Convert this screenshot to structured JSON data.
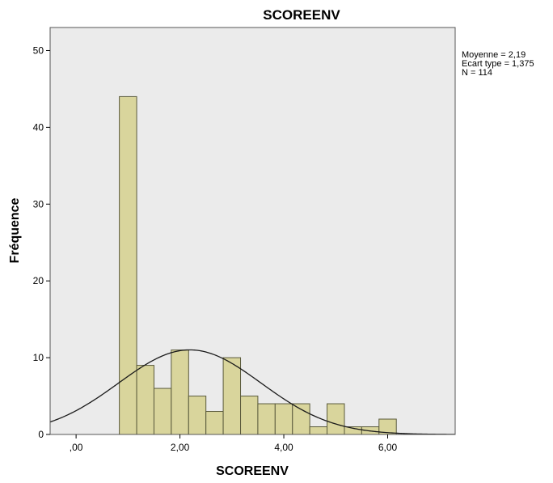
{
  "chart_data": {
    "type": "bar",
    "title": "SCOREENV",
    "xlabel": "SCOREENV",
    "ylabel": "Fréquence",
    "xlim": [
      -0.5,
      7.3
    ],
    "ylim": [
      0,
      53
    ],
    "x_ticks": [
      0,
      2,
      4,
      6
    ],
    "x_tick_labels": [
      ",00",
      "2,00",
      "4,00",
      "6,00"
    ],
    "y_ticks": [
      0,
      10,
      20,
      30,
      40,
      50
    ],
    "y_tick_labels": [
      "0",
      "10",
      "20",
      "30",
      "40",
      "50"
    ],
    "grid": false,
    "bin_width": 0.333,
    "bins": [
      {
        "x0": 0.833,
        "x1": 1.167,
        "count": 44
      },
      {
        "x0": 1.167,
        "x1": 1.5,
        "count": 9
      },
      {
        "x0": 1.5,
        "x1": 1.833,
        "count": 6
      },
      {
        "x0": 1.833,
        "x1": 2.167,
        "count": 11
      },
      {
        "x0": 2.167,
        "x1": 2.5,
        "count": 5
      },
      {
        "x0": 2.5,
        "x1": 2.833,
        "count": 3
      },
      {
        "x0": 2.833,
        "x1": 3.167,
        "count": 10
      },
      {
        "x0": 3.167,
        "x1": 3.5,
        "count": 5
      },
      {
        "x0": 3.5,
        "x1": 3.833,
        "count": 4
      },
      {
        "x0": 3.833,
        "x1": 4.167,
        "count": 4
      },
      {
        "x0": 4.167,
        "x1": 4.5,
        "count": 4
      },
      {
        "x0": 4.5,
        "x1": 4.833,
        "count": 1
      },
      {
        "x0": 4.833,
        "x1": 5.167,
        "count": 4
      },
      {
        "x0": 5.167,
        "x1": 5.5,
        "count": 1
      },
      {
        "x0": 5.5,
        "x1": 5.833,
        "count": 1
      },
      {
        "x0": 5.833,
        "x1": 6.167,
        "count": 2
      }
    ],
    "normal_curve": {
      "mean": 2.19,
      "sd": 1.375,
      "n": 114,
      "bin_width": 0.333
    },
    "stats_lines": [
      "Moyenne = 2,19",
      "Ecart type = 1,375",
      "N = 114"
    ],
    "colors": {
      "plot_background": "#ebebeb",
      "bar_fill": "#d9d59c",
      "bar_stroke": "#5a5a3c",
      "curve": "#1a1a1a",
      "frame": "#555555"
    }
  }
}
